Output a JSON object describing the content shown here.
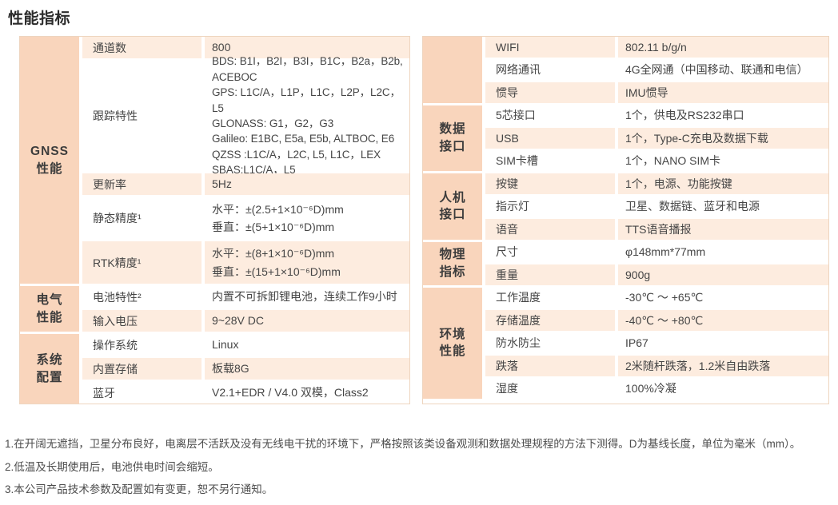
{
  "title": "性能指标",
  "colors": {
    "category_bg": "#f9d5bc",
    "stripe_bg": "#fdecdf",
    "table_border": "#eed5bf"
  },
  "left_table": {
    "groups": [
      {
        "category": "GNSS\n性能",
        "rows": [
          {
            "label": "通道数",
            "value": "800"
          },
          {
            "label": "跟踪特性",
            "value": "BDS: B1I，B2I，B3I，B1C，B2a，B2b,\nACEBOC\nGPS: L1C/A，L1P，L1C，L2P，L2C，L5\nGLONASS: G1，G2，G3\nGalileo: E1BC, E5a, E5b, ALTBOC, E6\nQZSS :L1C/A，L2C, L5, L1C，LEX\nSBAS:L1C/A，L5"
          },
          {
            "label": "更新率",
            "value": "5Hz"
          },
          {
            "label": "静态精度¹",
            "value": "水平：±(2.5+1×10⁻⁶D)mm\n垂直：±(5+1×10⁻⁶D)mm"
          },
          {
            "label": "RTK精度¹",
            "value": "水平：±(8+1×10⁻⁶D)mm\n垂直：±(15+1×10⁻⁶D)mm"
          }
        ]
      },
      {
        "category": "电气\n性能",
        "rows": [
          {
            "label": "电池特性²",
            "value": "内置不可拆卸锂电池，连续工作9小时"
          },
          {
            "label": "输入电压",
            "value": "9~28V DC"
          }
        ]
      },
      {
        "category": "系统\n配置",
        "rows": [
          {
            "label": "操作系统",
            "value": "Linux"
          },
          {
            "label": "内置存储",
            "value": "板载8G"
          },
          {
            "label": "蓝牙",
            "value": "V2.1+EDR / V4.0 双模，Class2"
          }
        ]
      }
    ]
  },
  "right_table": {
    "groups": [
      {
        "category": "",
        "rows": [
          {
            "label": "WIFI",
            "value": "802.11 b/g/n"
          },
          {
            "label": "网络通讯",
            "value": "4G全网通（中国移动、联通和电信）"
          },
          {
            "label": "惯导",
            "value": "IMU惯导"
          }
        ]
      },
      {
        "category": "数据\n接口",
        "rows": [
          {
            "label": "5芯接口",
            "value": "1个，供电及RS232串口"
          },
          {
            "label": "USB",
            "value": "1个，Type-C充电及数据下载"
          },
          {
            "label": "SIM卡槽",
            "value": "1个，NANO SIM卡"
          }
        ]
      },
      {
        "category": "人机\n接口",
        "rows": [
          {
            "label": "按键",
            "value": "1个，电源、功能按键"
          },
          {
            "label": "指示灯",
            "value": "卫星、数据链、蓝牙和电源"
          },
          {
            "label": "语音",
            "value": "TTS语音播报"
          }
        ]
      },
      {
        "category": "物理\n指标",
        "rows": [
          {
            "label": "尺寸",
            "value": "φ148mm*77mm"
          },
          {
            "label": "重量",
            "value": "900g"
          }
        ]
      },
      {
        "category": "环境\n性能",
        "rows": [
          {
            "label": "工作温度",
            "value": "-30℃ ～ +65℃"
          },
          {
            "label": "存储温度",
            "value": "-40℃ ～ +80℃"
          },
          {
            "label": "防水防尘",
            "value": "IP67"
          },
          {
            "label": "跌落",
            "value": "2米随杆跌落，1.2米自由跌落"
          },
          {
            "label": "湿度",
            "value": "100%冷凝"
          }
        ]
      }
    ]
  },
  "footnotes": [
    "1.在开阔无遮挡，卫星分布良好，电离层不活跃及没有无线电干扰的环境下，严格按照该类设备观测和数据处理规程的方法下测得。D为基线长度，单位为毫米（mm）。",
    "2.低温及长期使用后，电池供电时间会缩短。",
    "3.本公司产品技术参数及配置如有变更，恕不另行通知。"
  ]
}
